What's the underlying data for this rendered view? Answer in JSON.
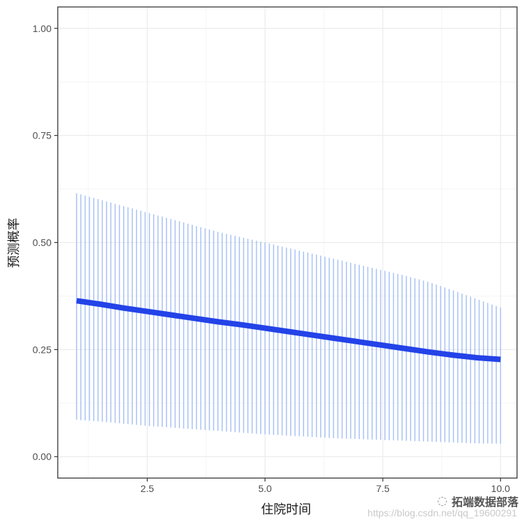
{
  "chart_data": {
    "type": "line",
    "xlabel": "住院时间",
    "ylabel": "预测概率",
    "xlim": [
      0.6,
      10.35
    ],
    "ylim": [
      -0.05,
      1.05
    ],
    "x_ticks": [
      "2.5",
      "5.0",
      "7.5",
      "10.0"
    ],
    "y_ticks": [
      "0.00",
      "0.25",
      "0.50",
      "0.75",
      "1.00"
    ],
    "x_tick_values": [
      2.5,
      5.0,
      7.5,
      10.0
    ],
    "y_tick_values": [
      0.0,
      0.25,
      0.5,
      0.75,
      1.0
    ],
    "series": [
      {
        "x": [
          1,
          1.5,
          2,
          2.5,
          3,
          3.5,
          4,
          4.5,
          5,
          5.5,
          6,
          6.5,
          7,
          7.5,
          8,
          8.5,
          9,
          9.5,
          10
        ],
        "y": [
          0.364,
          0.356,
          0.347,
          0.339,
          0.331,
          0.323,
          0.315,
          0.308,
          0.3,
          0.292,
          0.284,
          0.276,
          0.268,
          0.26,
          0.252,
          0.244,
          0.237,
          0.231,
          0.227
        ],
        "lower": [
          0.086,
          0.082,
          0.077,
          0.072,
          0.068,
          0.064,
          0.06,
          0.056,
          0.052,
          0.049,
          0.046,
          0.043,
          0.041,
          0.039,
          0.037,
          0.035,
          0.033,
          0.031,
          0.03
        ],
        "upper": [
          0.615,
          0.6,
          0.585,
          0.57,
          0.555,
          0.54,
          0.525,
          0.512,
          0.5,
          0.487,
          0.474,
          0.461,
          0.448,
          0.435,
          0.422,
          0.407,
          0.388,
          0.368,
          0.348
        ]
      }
    ],
    "grid": true,
    "legend": "none",
    "colors": {
      "line": "#2343e8",
      "errorbar": "#a8c2f5",
      "grid_major": "#ebebeb",
      "grid_minor": "#f5f5f5",
      "border": "#333333"
    }
  },
  "watermark": {
    "brand": "拓端数据部落",
    "url": "https://blog.csdn.net/qq_19600291",
    "icon": "wechat-icon"
  }
}
